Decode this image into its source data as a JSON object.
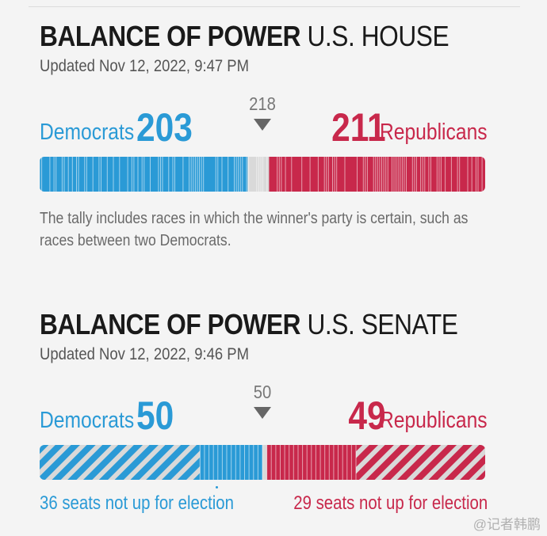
{
  "house": {
    "title_bold": "BALANCE OF POWER",
    "title_light": "U.S. HOUSE",
    "updated": "Updated Nov 12, 2022, 9:47 PM",
    "dem_label": "Democrats",
    "dem_count": "203",
    "rep_label": "Republicans",
    "rep_count": "211",
    "majority": "218",
    "note": "The tally includes races in which the winner's party is certain, such as races between two Democrats."
  },
  "senate": {
    "title_bold": "BALANCE OF POWER",
    "title_light": "U.S. SENATE",
    "updated": "Updated Nov 12, 2022, 9:46 PM",
    "dem_label": "Democrats",
    "dem_count": "50",
    "rep_label": "Republicans",
    "rep_count": "49",
    "majority": "50",
    "dem_not_up": "36 seats not up for election",
    "rep_not_up": "29 seats not up for election"
  },
  "watermark": "@记者韩鹏",
  "colors": {
    "democrat": "#2a9ad6",
    "republican": "#c8284b",
    "undecided": "#d9d9d9",
    "text": "#1a1a1a"
  },
  "chart_data": [
    {
      "type": "bar",
      "chamber": "house",
      "total": 435,
      "majority": 218,
      "series": [
        {
          "name": "Democrats",
          "values": [
            203
          ]
        },
        {
          "name": "Republicans",
          "values": [
            211
          ]
        }
      ],
      "undecided": 21
    },
    {
      "type": "bar",
      "chamber": "senate",
      "total": 100,
      "majority": 50,
      "series": [
        {
          "name": "Democrats",
          "values": [
            50
          ],
          "not_up": 36
        },
        {
          "name": "Republicans",
          "values": [
            49
          ],
          "not_up": 29
        }
      ],
      "undecided": 1
    }
  ]
}
